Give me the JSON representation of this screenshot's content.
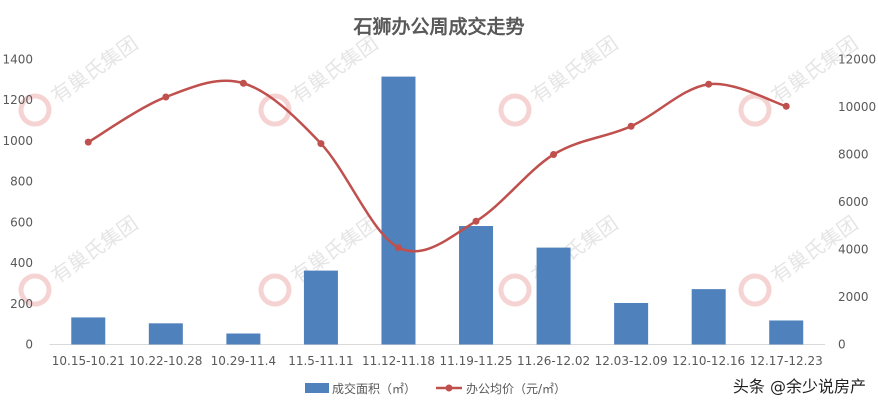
{
  "chart_data": {
    "type": "bar+line",
    "title": "石狮办公周成交走势",
    "categories": [
      "10.15-10.21",
      "10.22-10.28",
      "10.29-11.4",
      "11.5-11.11",
      "11.12-11.18",
      "11.19-11.25",
      "11.26-12.02",
      "12.03-12.09",
      "12.10-12.16",
      "12.17-12.23"
    ],
    "series": [
      {
        "name": "成交面积（㎡）",
        "type": "bar",
        "axis": "left",
        "color": "#4F81BD",
        "values": [
          133,
          104,
          54,
          363,
          1316,
          582,
          476,
          204,
          272,
          118
        ]
      },
      {
        "name": "办公均价（元/㎡）",
        "type": "line",
        "axis": "right",
        "color": "#C0504D",
        "smooth": true,
        "values": [
          8520,
          10420,
          11000,
          8460,
          4080,
          5190,
          8000,
          9190,
          10960,
          10030
        ]
      }
    ],
    "ylim_left": [
      0,
      1400
    ],
    "yticks_left": [
      "0",
      "200",
      "400",
      "600",
      "800",
      "1000",
      "1200",
      "1400"
    ],
    "ylim_right": [
      0,
      12000
    ],
    "yticks_right": [
      "0",
      "2000",
      "4000",
      "6000",
      "8000",
      "10000",
      "12000"
    ],
    "grid": false,
    "legend": "bottom"
  },
  "watermark": "有巢氏集团",
  "credit": "头条 @余少说房产"
}
